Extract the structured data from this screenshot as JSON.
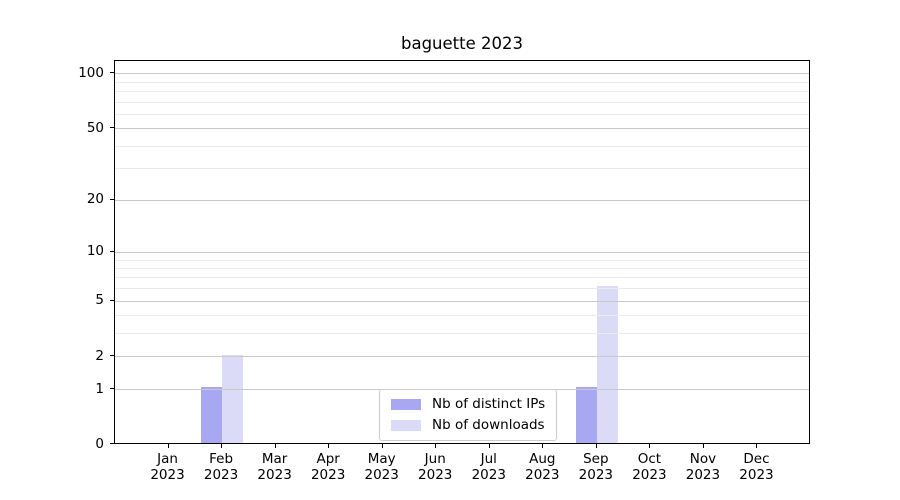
{
  "chart_data": {
    "type": "bar",
    "title": "baguette 2023",
    "categories": [
      "Jan",
      "Feb",
      "Mar",
      "Apr",
      "May",
      "Jun",
      "Jul",
      "Aug",
      "Sep",
      "Oct",
      "Nov",
      "Dec"
    ],
    "year_label": "2023",
    "series": [
      {
        "name": "Nb of distinct IPs",
        "color": "#a8a8f2",
        "values": [
          0,
          1,
          0,
          0,
          0,
          0,
          0,
          0,
          1,
          0,
          0,
          0
        ]
      },
      {
        "name": "Nb of downloads",
        "color": "#dbdbf8",
        "values": [
          0,
          2,
          0,
          0,
          0,
          0,
          0,
          0,
          6,
          0,
          0,
          0
        ]
      }
    ],
    "y_axis": {
      "scale": "log10(1+v)",
      "max": 100,
      "major_ticks": [
        0,
        1,
        2,
        5,
        10,
        20,
        50,
        100
      ],
      "minor_ticks": [
        3,
        4,
        6,
        7,
        8,
        9,
        30,
        40,
        60,
        70,
        80,
        90
      ]
    },
    "x_axis": {
      "tick_count": 12
    },
    "legend": {
      "position": "inside-bottom-center"
    },
    "colors": {
      "major_grid": "#c9c9c9",
      "minor_grid": "#ebebeb",
      "spine": "#000000",
      "background": "#ffffff"
    }
  }
}
